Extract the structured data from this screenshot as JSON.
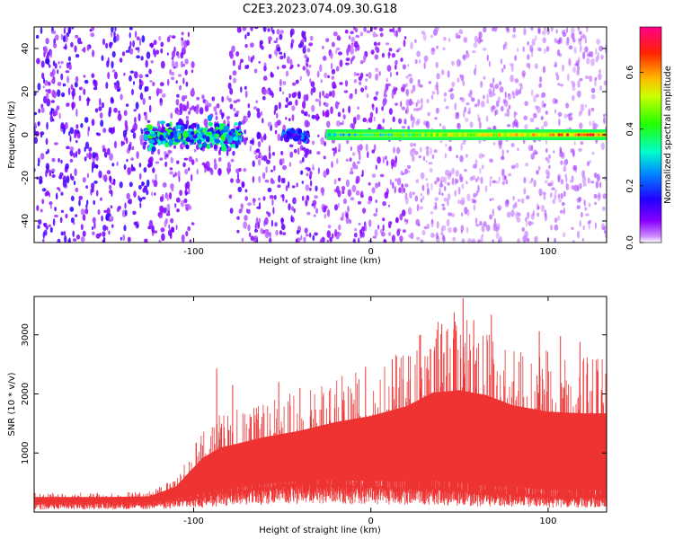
{
  "title": "C2E3.2023.074.09.30.G18",
  "chart_data": [
    {
      "type": "heatmap",
      "xlabel": "Height of straight line (km)",
      "ylabel": "Frequency (Hz)",
      "xlim": [
        -190,
        133
      ],
      "ylim": [
        -50,
        50
      ],
      "x_ticks": [
        -100,
        0,
        100
      ],
      "x_tick_labels": [
        "-100",
        "0",
        "100"
      ],
      "y_ticks": [
        -40,
        -20,
        0,
        20,
        40
      ],
      "y_tick_labels": [
        "-40",
        "-20",
        "0",
        "20",
        "40"
      ],
      "colorbar": {
        "label": "Normalized spectral amplitude",
        "range": [
          0.0,
          0.76
        ],
        "ticks": [
          0.0,
          0.2,
          0.4,
          0.6
        ],
        "tick_labels": [
          "0.0",
          "0.2",
          "0.4",
          "0.6"
        ],
        "colormap": "gist_rainbow_r"
      },
      "features": [
        {
          "name": "noise-blob",
          "x_range": [
            -127,
            -73
          ],
          "freq_range": [
            -9,
            8
          ],
          "amplitude": 0.3
        },
        {
          "name": "small-blob",
          "x_range": [
            -50,
            -35
          ],
          "freq_range": [
            -4,
            3
          ],
          "amplitude": 0.18
        },
        {
          "name": "carrier-line",
          "x_range": [
            -25,
            133
          ],
          "freq": 0,
          "amplitude": 0.6
        }
      ]
    },
    {
      "type": "line",
      "xlabel": "Height of straight line (km)",
      "ylabel": "SNR (10 * v/v)",
      "xlim": [
        -190,
        133
      ],
      "ylim": [
        0,
        3650
      ],
      "x_ticks": [
        -100,
        0,
        100
      ],
      "x_tick_labels": [
        "-100",
        "0",
        "100"
      ],
      "y_ticks": [
        1000,
        2000,
        3000
      ],
      "y_tick_labels": [
        "1000",
        "2000",
        "3000"
      ],
      "color": "#ee3333",
      "envelope": {
        "x": [
          -190,
          -150,
          -125,
          -110,
          -95,
          -85,
          -75,
          -60,
          -40,
          -20,
          0,
          20,
          35,
          50,
          65,
          80,
          100,
          120,
          133
        ],
        "y_min": [
          150,
          150,
          150,
          200,
          250,
          320,
          350,
          400,
          450,
          450,
          420,
          400,
          400,
          350,
          300,
          300,
          250,
          250,
          250
        ],
        "y_max": [
          330,
          330,
          350,
          600,
          1400,
          1650,
          1750,
          1900,
          2050,
          2300,
          2500,
          2800,
          3200,
          3300,
          3200,
          2900,
          2750,
          2700,
          2700
        ]
      },
      "peaks": [
        {
          "x": -87,
          "y": 2430
        },
        {
          "x": -78,
          "y": 2150
        },
        {
          "x": -52,
          "y": 2200
        },
        {
          "x": -40,
          "y": 2100
        },
        {
          "x": -3,
          "y": 2460
        },
        {
          "x": 12,
          "y": 2590
        },
        {
          "x": 28,
          "y": 3000
        },
        {
          "x": 40,
          "y": 3180
        },
        {
          "x": 47,
          "y": 3380
        },
        {
          "x": 52,
          "y": 3620
        },
        {
          "x": 58,
          "y": 3250
        },
        {
          "x": 68,
          "y": 3340
        },
        {
          "x": 95,
          "y": 3060
        },
        {
          "x": 107,
          "y": 2980
        },
        {
          "x": 118,
          "y": 2880
        }
      ]
    }
  ]
}
